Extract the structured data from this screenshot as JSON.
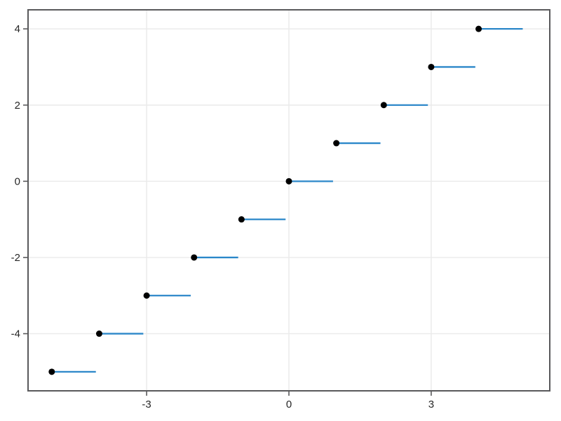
{
  "chart_data": {
    "type": "scatter",
    "subtype": "step-function-floor",
    "title": "",
    "xlabel": "",
    "ylabel": "",
    "xlim": [
      -5.5,
      5.5
    ],
    "ylim": [
      -5.5,
      4.5
    ],
    "xticks": [
      -3,
      0,
      3
    ],
    "xtick_labels": [
      "-3",
      "0",
      "3"
    ],
    "yticks": [
      -4,
      -2,
      0,
      2,
      4
    ],
    "ytick_labels": [
      "-4",
      "-2",
      "0",
      "2",
      "4"
    ],
    "grid": true,
    "legend": false,
    "series": [
      {
        "name": "step-segments-with-closed-left-endpoints",
        "marker": "filled-circle",
        "segment_length": 0.93,
        "points": [
          {
            "x": -5,
            "y": -5
          },
          {
            "x": -4,
            "y": -4
          },
          {
            "x": -3,
            "y": -3
          },
          {
            "x": -2,
            "y": -2
          },
          {
            "x": -1,
            "y": -1
          },
          {
            "x": 0,
            "y": 0
          },
          {
            "x": 1,
            "y": 1
          },
          {
            "x": 2,
            "y": 2
          },
          {
            "x": 3,
            "y": 3
          },
          {
            "x": 4,
            "y": 4
          }
        ]
      }
    ],
    "colors": {
      "segment": "#2b87c9",
      "marker": "#000000",
      "grid": "#eaeaea",
      "spine": "#59595b",
      "tick": "#59595b",
      "tick_label": "#262626",
      "background": "#ffffff"
    }
  }
}
